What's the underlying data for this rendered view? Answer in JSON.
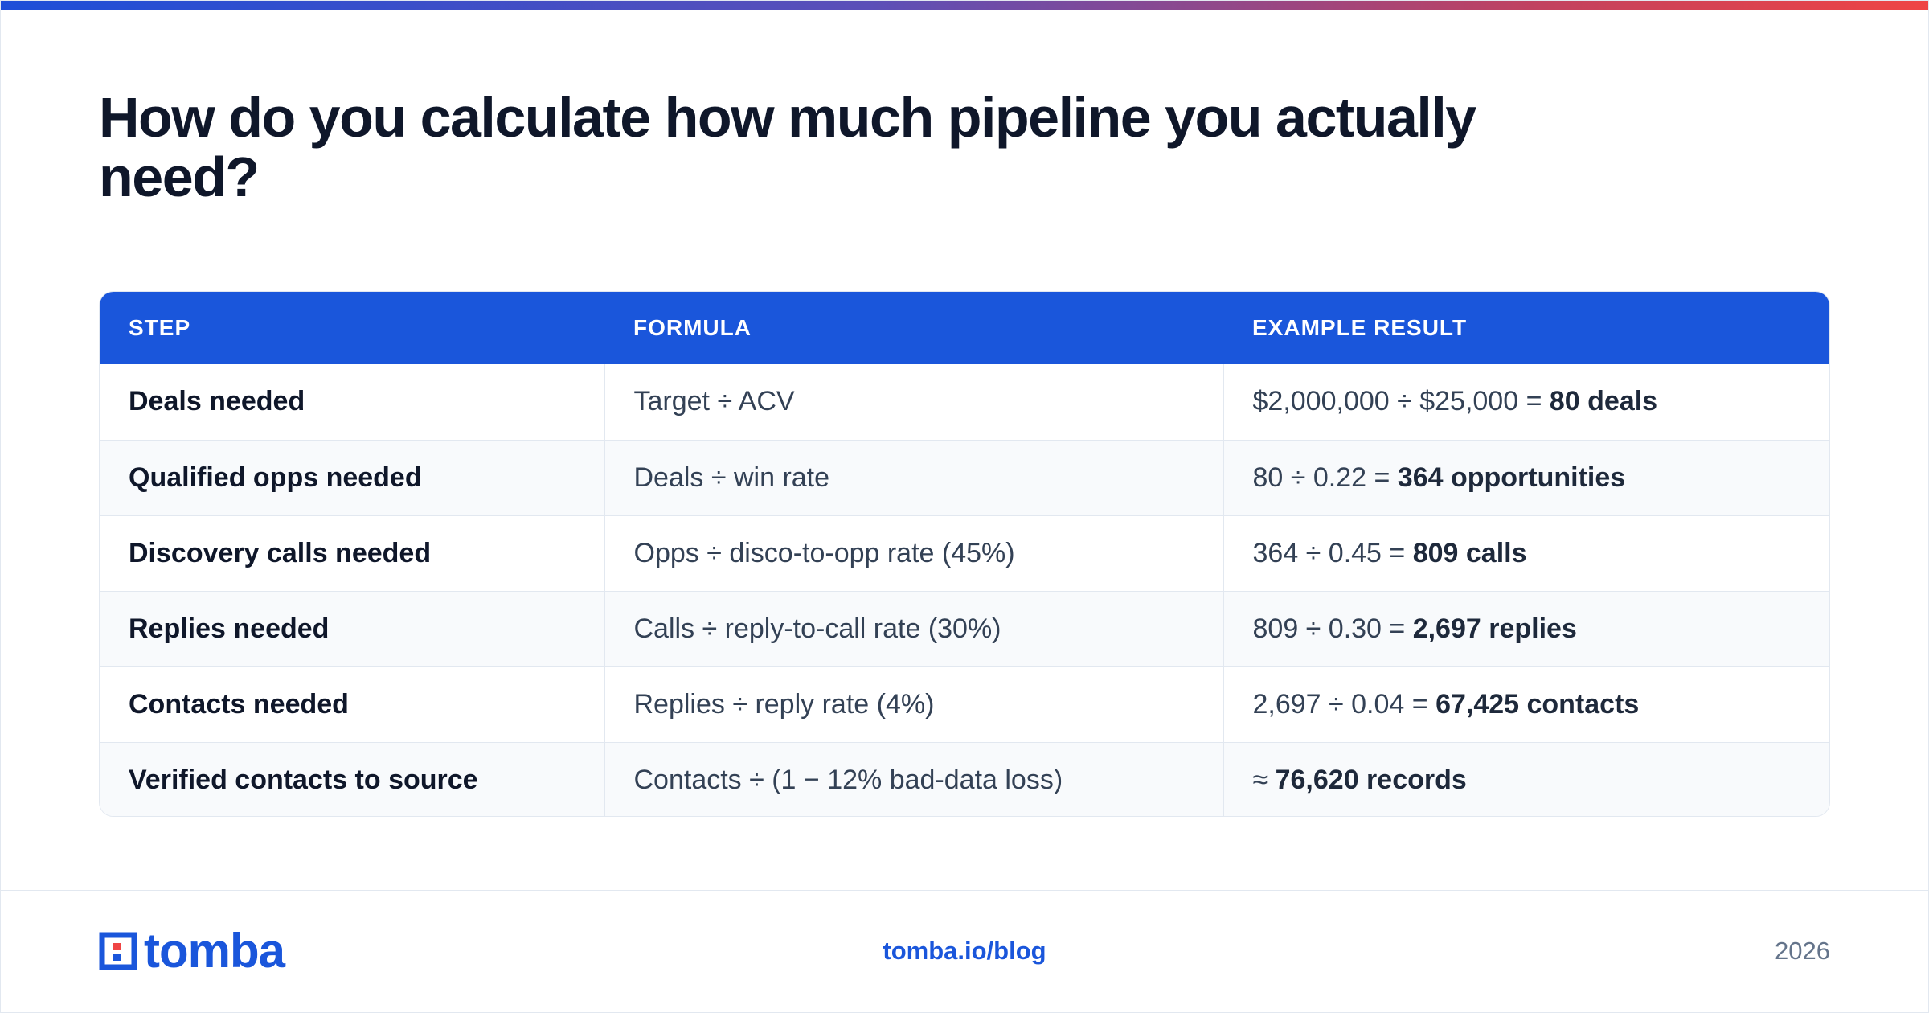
{
  "headline": "How do you calculate how much pipeline you actually need?",
  "table": {
    "columns": [
      "STEP",
      "FORMULA",
      "EXAMPLE RESULT"
    ],
    "rows": [
      {
        "step": "Deals needed",
        "formula": "Target ÷ ACV",
        "calc": "$2,000,000 ÷ $25,000 = ",
        "result": "80 deals"
      },
      {
        "step": "Qualified opps needed",
        "formula": "Deals ÷ win rate",
        "calc": "80 ÷ 0.22 = ",
        "result": "364 opportunities"
      },
      {
        "step": "Discovery calls needed",
        "formula": "Opps ÷ disco-to-opp rate (45%)",
        "calc": "364 ÷ 0.45 = ",
        "result": "809 calls"
      },
      {
        "step": "Replies needed",
        "formula": "Calls ÷ reply-to-call rate (30%)",
        "calc": "809 ÷ 0.30 = ",
        "result": "2,697 replies"
      },
      {
        "step": "Contacts needed",
        "formula": "Replies ÷ reply rate (4%)",
        "calc": "2,697 ÷ 0.04 = ",
        "result": "67,425 contacts"
      },
      {
        "step": "Verified contacts to source",
        "formula": "Contacts ÷ (1 − 12% bad-data loss)",
        "calc": "≈ ",
        "result": "76,620 records"
      }
    ]
  },
  "footer": {
    "logo_text": "tomba",
    "link": "tomba.io/blog",
    "year": "2026"
  },
  "colors": {
    "accent": "#1a56db",
    "heading": "#0f172a",
    "gradient_start": "#1d4ed8",
    "gradient_end": "#ef4444"
  }
}
